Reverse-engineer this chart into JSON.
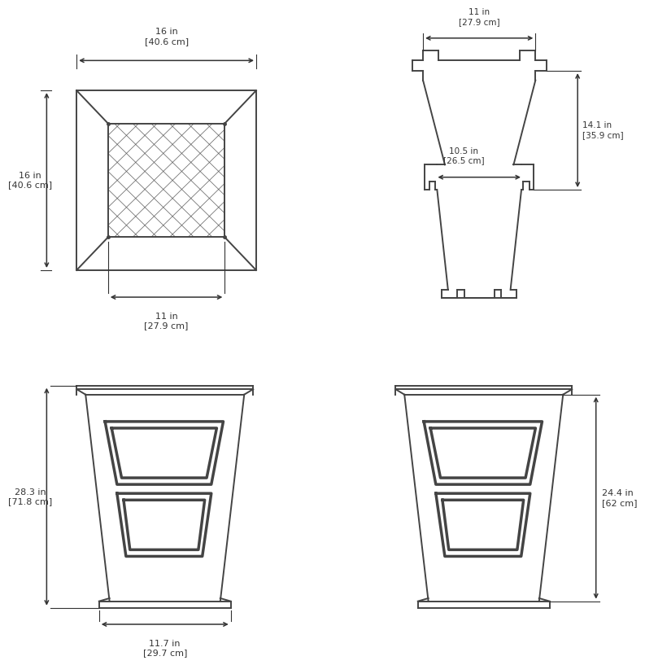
{
  "bg_color": "#ffffff",
  "line_color": "#444444",
  "dim_color": "#333333",
  "views": {
    "top_view": {
      "label_top": "16 in\n[40.6 cm]",
      "label_left": "16 in\n[40.6 cm]",
      "label_bottom": "11 in\n[27.9 cm]"
    },
    "side_view": {
      "label_top": "11 in\n[27.9 cm]",
      "label_mid": "10.5 in\n[26.5 cm]",
      "label_right": "14.1 in\n[35.9 cm]"
    },
    "front_view": {
      "label_left": "28.3 in\n[71.8 cm]",
      "label_bottom": "11.7 in\n[29.7 cm]"
    },
    "front_view2": {
      "label_right": "24.4 in\n[62 cm]"
    }
  }
}
